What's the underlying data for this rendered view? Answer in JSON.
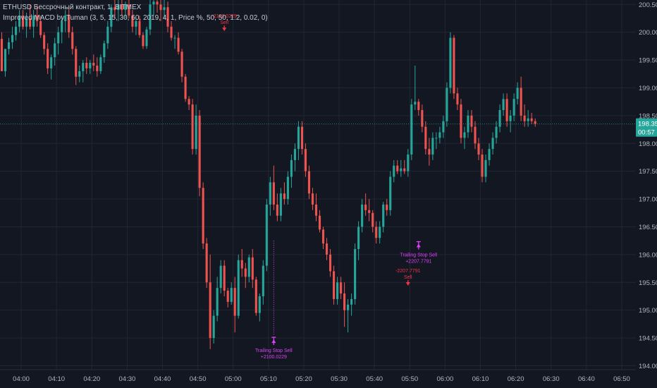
{
  "legend": {
    "symbol_line": "ETHUSD Бессрочный контракт, 1, BITMEX",
    "indicator_line": "Improved MACD by Tuman (3, 5, 15, 30, 60, 2019, 4, 1, Price %, 50, 50, 1.2, 0.02, 0)"
  },
  "price_badge": {
    "value": "198.35",
    "countdown": "00:57",
    "color": "#26a69a"
  },
  "colors": {
    "background": "#131722",
    "up": "#26a69a",
    "down": "#ef5350",
    "grid": "#232632",
    "sell": "#f23645",
    "trailing": "#e040fb"
  },
  "chart_data": {
    "type": "candlestick",
    "symbol": "ETHUSD",
    "interval": "1",
    "exchange": "BITMEX",
    "ylim": [
      193.93,
      200.58
    ],
    "y_ticks": [
      "200.50",
      "200.00",
      "199.50",
      "199.00",
      "198.50",
      "198.00",
      "197.50",
      "197.00",
      "196.50",
      "196.00",
      "195.50",
      "195.00",
      "194.50",
      "194.00"
    ],
    "x_ticks": [
      "04:00",
      "04:10",
      "04:20",
      "04:30",
      "04:40",
      "04:50",
      "05:00",
      "05:10",
      "05:20",
      "05:30",
      "05:40",
      "05:50",
      "06:00",
      "06:10",
      "06:20",
      "06:30",
      "06:40",
      "06:50"
    ],
    "x_range_minutes": [
      "03:54",
      "06:54"
    ],
    "candles": [
      [
        199.88,
        200.0,
        199.3,
        199.3
      ],
      [
        199.3,
        199.7,
        199.2,
        199.7
      ],
      [
        199.7,
        199.9,
        199.6,
        199.82
      ],
      [
        199.82,
        200.1,
        199.7,
        199.95
      ],
      [
        199.95,
        200.2,
        199.85,
        200.1
      ],
      [
        200.1,
        200.4,
        200.0,
        200.3
      ],
      [
        200.3,
        200.4,
        200.05,
        200.1
      ],
      [
        200.1,
        200.35,
        199.9,
        200.25
      ],
      [
        200.25,
        200.5,
        200.05,
        200.1
      ],
      [
        200.1,
        200.4,
        199.9,
        200.3
      ],
      [
        200.3,
        200.5,
        200.1,
        200.2
      ],
      [
        200.2,
        200.3,
        199.9,
        199.95
      ],
      [
        199.95,
        200.0,
        199.6,
        199.7
      ],
      [
        199.7,
        199.8,
        199.25,
        199.35
      ],
      [
        199.35,
        199.6,
        199.15,
        199.55
      ],
      [
        199.55,
        199.9,
        199.4,
        199.8
      ],
      [
        199.8,
        200.1,
        199.6,
        200.0
      ],
      [
        200.0,
        200.3,
        199.8,
        200.2
      ],
      [
        200.2,
        200.4,
        200.0,
        200.3
      ],
      [
        200.3,
        200.45,
        199.9,
        200.0
      ],
      [
        200.0,
        200.1,
        199.6,
        199.7
      ],
      [
        199.7,
        199.75,
        199.05,
        199.2
      ],
      [
        199.2,
        199.4,
        199.1,
        199.3
      ],
      [
        199.3,
        199.5,
        199.1,
        199.45
      ],
      [
        199.45,
        199.55,
        199.25,
        199.35
      ],
      [
        199.35,
        199.5,
        199.25,
        199.45
      ],
      [
        199.45,
        199.6,
        199.3,
        199.4
      ],
      [
        199.4,
        199.55,
        199.2,
        199.3
      ],
      [
        199.3,
        199.6,
        199.25,
        199.55
      ],
      [
        199.55,
        199.85,
        199.45,
        199.8
      ],
      [
        199.8,
        200.2,
        199.7,
        200.1
      ],
      [
        200.1,
        200.5,
        200.0,
        200.45
      ],
      [
        200.45,
        200.6,
        200.25,
        200.4
      ],
      [
        200.4,
        200.6,
        200.2,
        200.5
      ],
      [
        200.5,
        200.6,
        200.3,
        200.4
      ],
      [
        200.4,
        200.55,
        200.25,
        200.5
      ],
      [
        200.5,
        200.6,
        200.25,
        200.3
      ],
      [
        200.3,
        200.4,
        200.0,
        200.1
      ],
      [
        200.1,
        200.25,
        199.95,
        200.2
      ],
      [
        200.2,
        200.3,
        199.9,
        199.95
      ],
      [
        199.95,
        200.0,
        199.7,
        199.75
      ],
      [
        199.75,
        200.1,
        199.7,
        200.05
      ],
      [
        200.05,
        200.6,
        199.95,
        200.5
      ],
      [
        200.5,
        200.6,
        200.3,
        200.55
      ],
      [
        200.55,
        200.6,
        200.35,
        200.5
      ],
      [
        200.5,
        200.6,
        200.2,
        200.4
      ],
      [
        200.4,
        200.6,
        200.25,
        200.45
      ],
      [
        200.45,
        200.55,
        200.0,
        200.1
      ],
      [
        200.1,
        200.2,
        199.85,
        199.9
      ],
      [
        199.9,
        199.95,
        199.7,
        199.9
      ],
      [
        199.9,
        200.0,
        199.6,
        199.65
      ],
      [
        199.65,
        199.7,
        199.1,
        199.2
      ],
      [
        199.2,
        199.25,
        198.75,
        198.8
      ],
      [
        198.8,
        198.85,
        198.6,
        198.7
      ],
      [
        198.7,
        198.8,
        197.8,
        197.9
      ],
      [
        197.9,
        198.7,
        197.8,
        198.5
      ],
      [
        198.5,
        198.6,
        197.05,
        197.2
      ],
      [
        197.2,
        197.3,
        196.1,
        196.2
      ],
      [
        196.2,
        196.3,
        195.4,
        195.5
      ],
      [
        195.5,
        196.0,
        194.3,
        194.5
      ],
      [
        194.5,
        195.0,
        194.4,
        194.9
      ],
      [
        194.9,
        195.6,
        194.8,
        195.4
      ],
      [
        195.4,
        195.9,
        195.3,
        195.8
      ],
      [
        195.8,
        195.9,
        195.25,
        195.35
      ],
      [
        195.35,
        195.4,
        195.05,
        195.15
      ],
      [
        195.15,
        195.5,
        195.1,
        195.4
      ],
      [
        195.4,
        195.6,
        194.6,
        194.9
      ],
      [
        194.9,
        196.0,
        194.85,
        195.9
      ],
      [
        195.9,
        196.1,
        195.6,
        195.75
      ],
      [
        195.75,
        195.85,
        195.4,
        195.6
      ],
      [
        195.6,
        196.0,
        195.5,
        195.95
      ],
      [
        195.95,
        196.1,
        195.4,
        195.55
      ],
      [
        195.55,
        195.6,
        194.9,
        194.95
      ],
      [
        194.95,
        195.3,
        194.8,
        195.25
      ],
      [
        195.25,
        195.9,
        195.1,
        195.8
      ],
      [
        195.8,
        197.0,
        195.7,
        196.9
      ],
      [
        196.9,
        197.4,
        196.7,
        197.3
      ],
      [
        197.3,
        197.6,
        196.8,
        196.9
      ],
      [
        196.9,
        197.1,
        196.6,
        196.7
      ],
      [
        196.7,
        197.2,
        196.6,
        197.1
      ],
      [
        197.1,
        197.3,
        196.9,
        197.0
      ],
      [
        197.0,
        197.5,
        196.9,
        197.4
      ],
      [
        197.4,
        197.8,
        197.2,
        197.7
      ],
      [
        197.7,
        198.0,
        197.5,
        197.9
      ],
      [
        197.9,
        198.4,
        197.7,
        198.3
      ],
      [
        198.3,
        198.4,
        197.8,
        197.9
      ],
      [
        197.9,
        198.0,
        197.4,
        197.5
      ],
      [
        197.5,
        197.6,
        197.0,
        197.1
      ],
      [
        197.1,
        197.2,
        196.8,
        196.9
      ],
      [
        196.9,
        197.1,
        196.6,
        196.7
      ],
      [
        196.7,
        196.8,
        196.4,
        196.45
      ],
      [
        196.45,
        196.5,
        196.1,
        196.2
      ],
      [
        196.2,
        196.3,
        195.9,
        196.0
      ],
      [
        196.0,
        196.1,
        195.6,
        195.7
      ],
      [
        195.7,
        195.8,
        195.1,
        195.2
      ],
      [
        195.2,
        195.6,
        195.1,
        195.5
      ],
      [
        195.5,
        195.6,
        195.2,
        195.3
      ],
      [
        195.3,
        195.5,
        194.7,
        195.0
      ],
      [
        195.0,
        195.2,
        194.6,
        195.1
      ],
      [
        195.1,
        195.3,
        194.9,
        195.2
      ],
      [
        195.2,
        196.2,
        195.1,
        196.1
      ],
      [
        196.1,
        196.6,
        195.9,
        196.5
      ],
      [
        196.5,
        197.0,
        196.4,
        196.9
      ],
      [
        196.9,
        197.1,
        196.7,
        196.8
      ],
      [
        196.8,
        197.0,
        196.6,
        196.75
      ],
      [
        196.75,
        196.8,
        196.4,
        196.5
      ],
      [
        196.5,
        196.6,
        196.2,
        196.3
      ],
      [
        196.3,
        196.6,
        196.2,
        196.5
      ],
      [
        196.5,
        196.95,
        196.4,
        196.9
      ],
      [
        196.9,
        197.0,
        196.7,
        196.8
      ],
      [
        196.8,
        197.5,
        196.7,
        197.4
      ],
      [
        197.4,
        197.7,
        197.3,
        197.6
      ],
      [
        197.6,
        197.7,
        197.45,
        197.5
      ],
      [
        197.5,
        197.7,
        197.4,
        197.55
      ],
      [
        197.55,
        197.7,
        197.45,
        197.5
      ],
      [
        197.5,
        197.9,
        197.4,
        197.8
      ],
      [
        197.8,
        198.8,
        197.7,
        198.7
      ],
      [
        198.7,
        199.4,
        198.6,
        198.75
      ],
      [
        198.75,
        198.8,
        198.5,
        198.6
      ],
      [
        198.6,
        198.7,
        198.2,
        198.3
      ],
      [
        198.3,
        198.4,
        197.8,
        197.9
      ],
      [
        197.9,
        198.1,
        197.6,
        197.8
      ],
      [
        197.8,
        198.2,
        197.7,
        198.1
      ],
      [
        198.1,
        198.2,
        197.9,
        198.1
      ],
      [
        198.1,
        198.3,
        198.0,
        198.2
      ],
      [
        198.2,
        198.5,
        198.1,
        198.4
      ],
      [
        198.4,
        199.1,
        198.3,
        199.0
      ],
      [
        199.0,
        200.0,
        198.9,
        199.9
      ],
      [
        199.9,
        199.95,
        198.8,
        198.9
      ],
      [
        198.9,
        199.0,
        198.6,
        198.7
      ],
      [
        198.7,
        198.8,
        198.0,
        198.1
      ],
      [
        198.1,
        198.3,
        197.9,
        198.2
      ],
      [
        198.2,
        198.6,
        198.1,
        198.5
      ],
      [
        198.5,
        198.6,
        198.2,
        198.3
      ],
      [
        198.3,
        198.4,
        197.9,
        198.0
      ],
      [
        198.0,
        198.1,
        197.7,
        197.8
      ],
      [
        197.8,
        197.9,
        197.3,
        197.4
      ],
      [
        197.4,
        197.8,
        197.3,
        197.7
      ],
      [
        197.7,
        198.0,
        197.6,
        197.9
      ],
      [
        197.9,
        198.2,
        197.8,
        198.1
      ],
      [
        198.1,
        198.4,
        198.0,
        198.3
      ],
      [
        198.3,
        198.7,
        198.2,
        198.6
      ],
      [
        198.6,
        198.9,
        198.5,
        198.8
      ],
      [
        198.8,
        198.9,
        198.3,
        198.4
      ],
      [
        198.4,
        198.6,
        198.2,
        198.5
      ],
      [
        198.5,
        198.9,
        198.4,
        198.8
      ],
      [
        198.8,
        199.1,
        198.7,
        199.0
      ],
      [
        199.0,
        199.2,
        198.4,
        198.5
      ],
      [
        198.5,
        198.7,
        198.3,
        198.4
      ],
      [
        198.4,
        198.6,
        198.3,
        198.45
      ],
      [
        198.45,
        198.55,
        198.35,
        198.4
      ],
      [
        198.4,
        198.45,
        198.3,
        198.35
      ]
    ],
    "signals": [
      {
        "type": "sell",
        "minute": 63,
        "price": 200.02,
        "lines": [
          "-2100.0229",
          "Sell"
        ]
      },
      {
        "type": "trailing_stop_sell",
        "minute": 77,
        "price": 194.5,
        "lines": [
          "Trailing Stop Sell",
          "+2100.0229"
        ]
      },
      {
        "type": "sell",
        "minute": 115,
        "price": 195.44,
        "lines": [
          "-2207.7791",
          "Sell"
        ]
      },
      {
        "type": "trailing_stop_sell",
        "minute": 118,
        "price": 196.22,
        "lines": [
          "Trailing Stop Sell",
          "+2207.7791"
        ]
      }
    ],
    "trailing_lines": [
      {
        "from_minute": 77,
        "to_minute": 77,
        "from_price": 196.25,
        "to_price": 194.55
      }
    ]
  }
}
